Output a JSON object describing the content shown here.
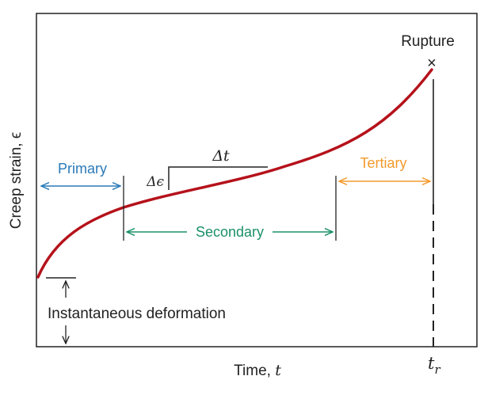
{
  "labels": {
    "rupture": "Rupture",
    "rupture_marker": "×",
    "primary": "Primary",
    "secondary": "Secondary",
    "tertiary": "Tertiary",
    "delta_t": "Δt",
    "delta_epsilon": "Δϵ",
    "instantaneous": "Instantaneous deformation",
    "x_axis_text": "Time, ",
    "x_axis_var": "t",
    "y_axis": "Creep strain, ϵ",
    "tr_main": "t",
    "tr_sub": "r"
  },
  "colors": {
    "curve": "#b5121b",
    "primary": "#2a7ab8",
    "secondary": "#1a8f6a",
    "tertiary": "#f39a2c",
    "ink": "#222222"
  }
}
